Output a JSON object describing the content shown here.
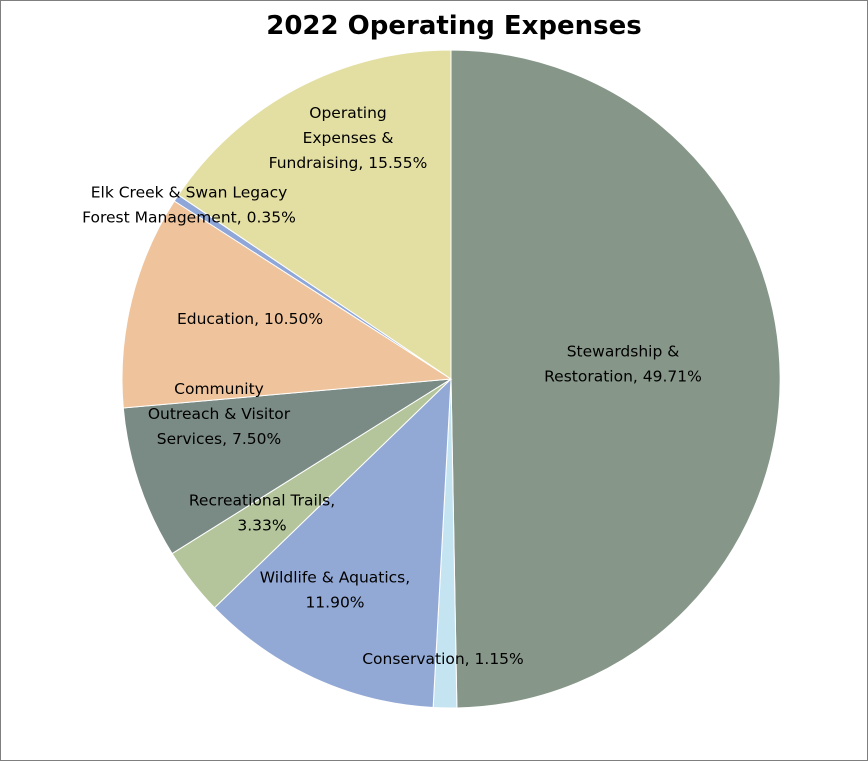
{
  "chart_data": {
    "type": "pie",
    "title": "2022 Operating Expenses",
    "start_angle_deg": 0,
    "direction": "clockwise",
    "slices": [
      {
        "label_lines": [
          "Stewardship &",
          "Restoration, 49.71%"
        ],
        "category": "Stewardship & Restoration",
        "value": 49.71,
        "color": "#869789"
      },
      {
        "label_lines": [
          "Conservation, 1.15%"
        ],
        "category": "Conservation",
        "value": 1.15,
        "color": "#c5e4f2"
      },
      {
        "label_lines": [
          "Wildlife & Aquatics,",
          "11.90%"
        ],
        "category": "Wildlife & Aquatics",
        "value": 11.9,
        "color": "#93a9d5"
      },
      {
        "label_lines": [
          "Recreational Trails,",
          "3.33%"
        ],
        "category": "Recreational Trails",
        "value": 3.33,
        "color": "#b4c59c"
      },
      {
        "label_lines": [
          "Community",
          "Outreach & Visitor",
          "Services, 7.50%"
        ],
        "category": "Community Outreach & Visitor Services",
        "value": 7.5,
        "color": "#7a8a84"
      },
      {
        "label_lines": [
          "Education, 10.50%"
        ],
        "category": "Education",
        "value": 10.5,
        "color": "#efc39b"
      },
      {
        "label_lines": [
          "Elk Creek & Swan Legacy",
          "Forest Management, 0.35%"
        ],
        "category": "Elk Creek & Swan Legacy Forest Management",
        "value": 0.35,
        "color": "#8fa6d8"
      },
      {
        "label_lines": [
          "Operating",
          "Expenses &",
          "Fundraising, 15.55%"
        ],
        "category": "Operating Expenses & Fundraising",
        "value": 15.55,
        "color": "#e3dfa3"
      }
    ]
  }
}
